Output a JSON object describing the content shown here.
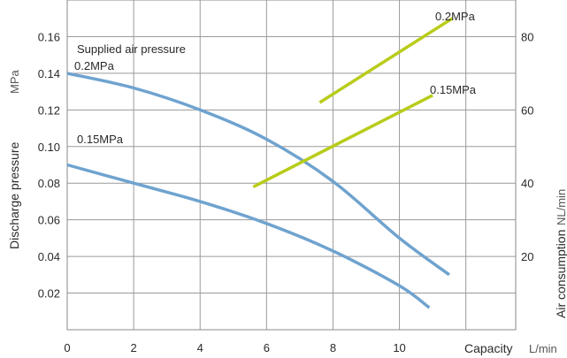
{
  "chart_data": {
    "type": "line",
    "x_axis": {
      "label": "Capacity",
      "unit": "L/min",
      "range": [
        0,
        13.5
      ],
      "ticks": [
        0,
        2,
        4,
        6,
        8,
        10
      ],
      "tick_labels": [
        "0",
        "2",
        "4",
        "6",
        "8",
        "10"
      ],
      "grid": true
    },
    "y_left": {
      "label": "Discharge pressure",
      "unit": "MPa",
      "range": [
        0,
        0.18
      ],
      "ticks": [
        0.02,
        0.04,
        0.06,
        0.08,
        0.1,
        0.12,
        0.14,
        0.16
      ],
      "tick_labels": [
        "0.02",
        "0.04",
        "0.06",
        "0.08",
        "0.10",
        "0.12",
        "0.14",
        "0.16"
      ],
      "grid": true
    },
    "y_right": {
      "label": "Air consumption",
      "unit": "NL/min",
      "range": [
        0,
        90
      ],
      "ticks": [
        20,
        40,
        60,
        80
      ],
      "tick_labels": [
        "20",
        "40",
        "60",
        "80"
      ]
    },
    "series": [
      {
        "name": "0.2MPa",
        "axis": "left",
        "color": "#6fa3cf",
        "x": [
          0,
          2,
          4,
          6,
          8,
          10,
          11.5
        ],
        "y": [
          0.14,
          0.132,
          0.12,
          0.104,
          0.081,
          0.05,
          0.03
        ]
      },
      {
        "name": "0.15MPa",
        "axis": "left",
        "color": "#6fa3cf",
        "x": [
          0,
          2,
          4,
          6,
          8,
          10,
          10.9
        ],
        "y": [
          0.09,
          0.08,
          0.07,
          0.058,
          0.043,
          0.024,
          0.012
        ]
      },
      {
        "name": "0.2MPa",
        "axis": "right",
        "color": "#b8cc1a",
        "x": [
          7.6,
          11.6
        ],
        "y": [
          62,
          85
        ]
      },
      {
        "name": "0.15MPa",
        "axis": "right",
        "color": "#b8cc1a",
        "x": [
          5.6,
          11
        ],
        "y": [
          39,
          64
        ]
      }
    ],
    "annotations": {
      "supplied_air_pressure": "Supplied air pressure",
      "p02_pressure": "0.2MPa",
      "p015_pressure": "0.15MPa",
      "p02_air": "0.2MPa",
      "p015_air": "0.15MPa"
    }
  }
}
